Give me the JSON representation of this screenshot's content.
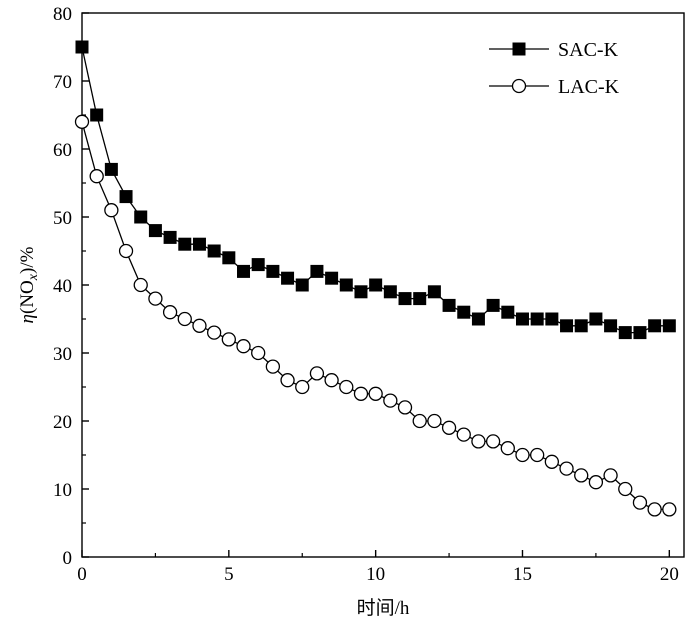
{
  "chart_data": {
    "type": "line",
    "xlabel": "时间/h",
    "ylabel": "η(NOx)/%",
    "ylabel_parts": {
      "italic": "η",
      "open": "(NO",
      "sub": "x",
      "close": ")/%"
    },
    "xlim": [
      0,
      20.5
    ],
    "ylim": [
      0,
      80
    ],
    "xticks": [
      0,
      5,
      10,
      15,
      20
    ],
    "yticks": [
      0,
      10,
      20,
      30,
      40,
      50,
      60,
      70,
      80
    ],
    "grid": false,
    "legend_position": "top-right",
    "series": [
      {
        "name": "SAC-K",
        "marker": "filled-square",
        "color": "#000000",
        "x": [
          0,
          0.5,
          1,
          1.5,
          2,
          2.5,
          3,
          3.5,
          4,
          4.5,
          5,
          5.5,
          6,
          6.5,
          7,
          7.5,
          8,
          8.5,
          9,
          9.5,
          10,
          10.5,
          11,
          11.5,
          12,
          12.5,
          13,
          13.5,
          14,
          14.5,
          15,
          15.5,
          16,
          16.5,
          17,
          17.5,
          18,
          18.5,
          19,
          19.5,
          20
        ],
        "y": [
          75,
          65,
          57,
          53,
          50,
          48,
          47,
          46,
          46,
          45,
          44,
          42,
          43,
          42,
          41,
          40,
          42,
          41,
          40,
          39,
          40,
          39,
          38,
          38,
          39,
          37,
          36,
          35,
          37,
          36,
          35,
          35,
          35,
          34,
          34,
          35,
          34,
          33,
          33,
          34,
          34
        ]
      },
      {
        "name": "LAC-K",
        "marker": "open-circle",
        "color": "#000000",
        "x": [
          0,
          0.5,
          1,
          1.5,
          2,
          2.5,
          3,
          3.5,
          4,
          4.5,
          5,
          5.5,
          6,
          6.5,
          7,
          7.5,
          8,
          8.5,
          9,
          9.5,
          10,
          10.5,
          11,
          11.5,
          12,
          12.5,
          13,
          13.5,
          14,
          14.5,
          15,
          15.5,
          16,
          16.5,
          17,
          17.5,
          18,
          18.5,
          19,
          19.5,
          20
        ],
        "y": [
          64,
          56,
          51,
          45,
          40,
          38,
          36,
          35,
          34,
          33,
          32,
          31,
          30,
          28,
          26,
          25,
          27,
          26,
          25,
          24,
          24,
          23,
          22,
          20,
          20,
          19,
          18,
          17,
          17,
          16,
          15,
          15,
          14,
          13,
          12,
          11,
          12,
          10,
          8,
          7,
          7
        ]
      }
    ]
  }
}
